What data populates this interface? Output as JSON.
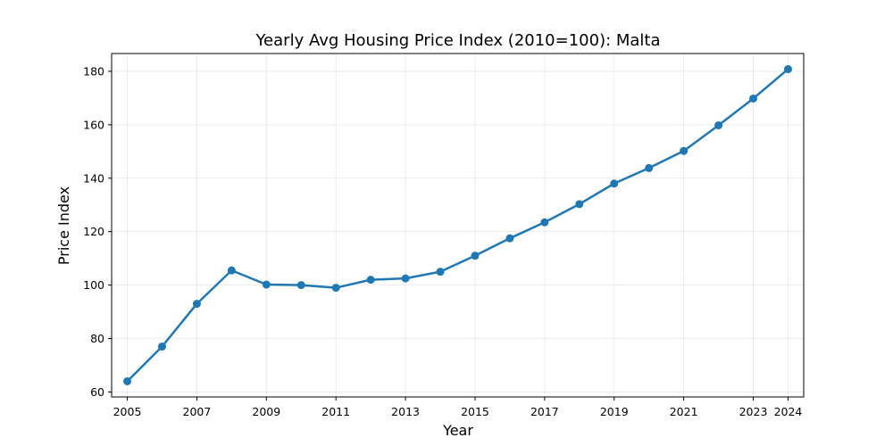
{
  "chart_data": {
    "type": "line",
    "title": "Yearly Avg Housing Price Index (2010=100): Malta",
    "xlabel": "Year",
    "ylabel": "Price Index",
    "x": [
      2005,
      2006,
      2007,
      2008,
      2009,
      2010,
      2011,
      2012,
      2013,
      2014,
      2015,
      2016,
      2017,
      2018,
      2019,
      2020,
      2021,
      2022,
      2023,
      2024
    ],
    "series": [
      {
        "values": [
          64.0,
          77.0,
          93.0,
          105.5,
          100.2,
          100.0,
          99.0,
          102.0,
          102.5,
          105.0,
          111.0,
          117.5,
          123.5,
          130.3,
          138.0,
          143.8,
          150.2,
          159.8,
          169.8,
          180.8
        ],
        "color": "#1f77b4"
      }
    ],
    "xticks": [
      "2005",
      "2007",
      "2009",
      "2011",
      "2013",
      "2015",
      "2017",
      "2019",
      "2021",
      "2023",
      "2024"
    ],
    "yticks": [
      "60",
      "80",
      "100",
      "120",
      "140",
      "160",
      "180"
    ],
    "xlim": [
      2004.55,
      2024.45
    ],
    "ylim": [
      58.15,
      186.65
    ],
    "grid": true
  }
}
